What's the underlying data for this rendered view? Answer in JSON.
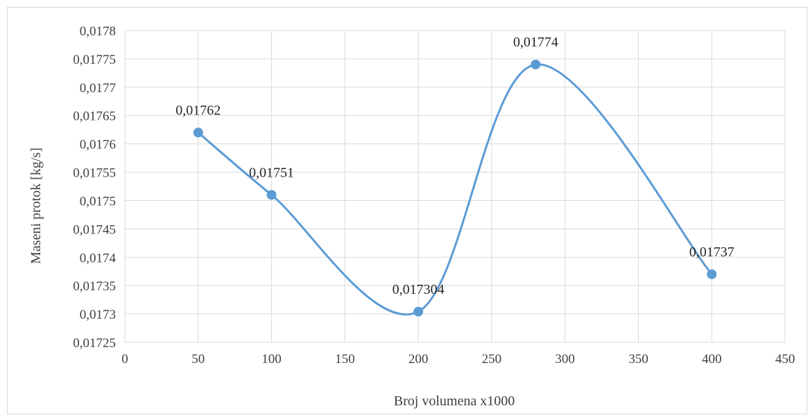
{
  "chart_data": {
    "type": "scatter",
    "smooth": true,
    "title": "",
    "xlabel": "Broj volumena  x1000",
    "ylabel": "Maseni protok  [kg/s]",
    "xlim": [
      0,
      450
    ],
    "ylim": [
      0.01725,
      0.0178
    ],
    "x_ticks": [
      "0",
      "50",
      "100",
      "150",
      "200",
      "250",
      "300",
      "350",
      "400",
      "450"
    ],
    "y_ticks": [
      "0,01725",
      "0,0173",
      "0,01735",
      "0,0174",
      "0,01745",
      "0,0175",
      "0,01755",
      "0,0176",
      "0,01765",
      "0,0177",
      "0,01775",
      "0,0178"
    ],
    "grid": true,
    "series": [
      {
        "x": [
          50,
          100,
          200,
          280,
          400
        ],
        "y": [
          0.01762,
          0.01751,
          0.017304,
          0.01774,
          0.01737
        ],
        "labels": [
          "0,01762",
          "0,01751",
          "0,017304",
          "0,01774",
          "0,01737"
        ],
        "color": "#5b9bd5"
      }
    ],
    "grid_color": "#d9d9d9"
  }
}
